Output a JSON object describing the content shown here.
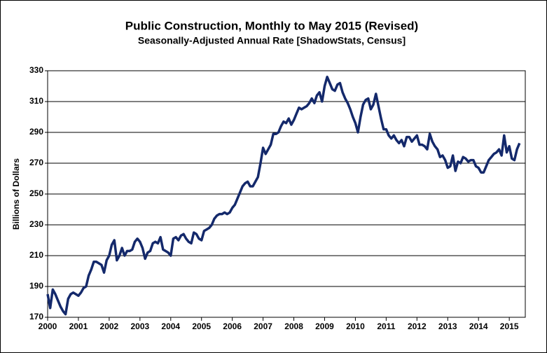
{
  "chart_data": {
    "type": "line",
    "title": "Public Construction, Monthly to May 2015 (Revised)",
    "subtitle": "Seasonally-Adjusted Annual Rate [ShadowStats, Census]",
    "y_label": "Billions  of Dollars",
    "color": "#14296b",
    "grid": true,
    "xlim": [
      2000,
      2015.52
    ],
    "xticks": [
      2000,
      2001,
      2002,
      2003,
      2004,
      2005,
      2006,
      2007,
      2008,
      2009,
      2010,
      2011,
      2012,
      2013,
      2014,
      2015
    ],
    "ylim": [
      170,
      330
    ],
    "yticks": [
      170,
      190,
      210,
      230,
      250,
      270,
      290,
      310,
      330
    ],
    "x": [
      2000,
      2000.083,
      2000.167,
      2000.25,
      2000.333,
      2000.417,
      2000.5,
      2000.583,
      2000.667,
      2000.75,
      2000.833,
      2000.917,
      2001,
      2001.083,
      2001.167,
      2001.25,
      2001.333,
      2001.417,
      2001.5,
      2001.583,
      2001.667,
      2001.75,
      2001.833,
      2001.917,
      2002,
      2002.083,
      2002.167,
      2002.25,
      2002.333,
      2002.417,
      2002.5,
      2002.583,
      2002.667,
      2002.75,
      2002.833,
      2002.917,
      2003,
      2003.083,
      2003.167,
      2003.25,
      2003.333,
      2003.417,
      2003.5,
      2003.583,
      2003.667,
      2003.75,
      2003.833,
      2003.917,
      2004,
      2004.083,
      2004.167,
      2004.25,
      2004.333,
      2004.417,
      2004.5,
      2004.583,
      2004.667,
      2004.75,
      2004.833,
      2004.917,
      2005,
      2005.083,
      2005.167,
      2005.25,
      2005.333,
      2005.417,
      2005.5,
      2005.583,
      2005.667,
      2005.75,
      2005.833,
      2005.917,
      2006,
      2006.083,
      2006.167,
      2006.25,
      2006.333,
      2006.417,
      2006.5,
      2006.583,
      2006.667,
      2006.75,
      2006.833,
      2006.917,
      2007,
      2007.083,
      2007.167,
      2007.25,
      2007.333,
      2007.417,
      2007.5,
      2007.583,
      2007.667,
      2007.75,
      2007.833,
      2007.917,
      2008,
      2008.083,
      2008.167,
      2008.25,
      2008.333,
      2008.417,
      2008.5,
      2008.583,
      2008.667,
      2008.75,
      2008.833,
      2008.917,
      2009,
      2009.083,
      2009.167,
      2009.25,
      2009.333,
      2009.417,
      2009.5,
      2009.583,
      2009.667,
      2009.75,
      2009.833,
      2009.917,
      2010,
      2010.083,
      2010.167,
      2010.25,
      2010.333,
      2010.417,
      2010.5,
      2010.583,
      2010.667,
      2010.75,
      2010.833,
      2010.917,
      2011,
      2011.083,
      2011.167,
      2011.25,
      2011.333,
      2011.417,
      2011.5,
      2011.583,
      2011.667,
      2011.75,
      2011.833,
      2011.917,
      2012,
      2012.083,
      2012.167,
      2012.25,
      2012.333,
      2012.417,
      2012.5,
      2012.583,
      2012.667,
      2012.75,
      2012.833,
      2012.917,
      2013,
      2013.083,
      2013.167,
      2013.25,
      2013.333,
      2013.417,
      2013.5,
      2013.583,
      2013.667,
      2013.75,
      2013.833,
      2013.917,
      2014,
      2014.083,
      2014.167,
      2014.25,
      2014.333,
      2014.417,
      2014.5,
      2014.583,
      2014.667,
      2014.75,
      2014.833,
      2014.917,
      2015,
      2015.083,
      2015.167,
      2015.25,
      2015.333
    ],
    "values": [
      185,
      176,
      188,
      185,
      181,
      177,
      174,
      172,
      182,
      185,
      186,
      185,
      184,
      186,
      189,
      190,
      197,
      201,
      206,
      206,
      205,
      204,
      199,
      207,
      210,
      217,
      220,
      207,
      210,
      215,
      210,
      213,
      213,
      214,
      219,
      221,
      219,
      215,
      208,
      212,
      213,
      218,
      219,
      218,
      222,
      214,
      213,
      212,
      210,
      221,
      222,
      220,
      223,
      224,
      221,
      219,
      218,
      225,
      224,
      221,
      220,
      226,
      227,
      228,
      230,
      234,
      236,
      237,
      237,
      238,
      237,
      238,
      241,
      243,
      247,
      251,
      255,
      257,
      258,
      255,
      255,
      258,
      261,
      270,
      280,
      276,
      279,
      282,
      289,
      289,
      290,
      294,
      297,
      296,
      299,
      295,
      298,
      302,
      306,
      305,
      306,
      307,
      309,
      312,
      309,
      314,
      316,
      310,
      320,
      326,
      322,
      318,
      317,
      321,
      322,
      316,
      312,
      309,
      305,
      300,
      296,
      290,
      300,
      308,
      311,
      312,
      305,
      308,
      315,
      307,
      299,
      292,
      292,
      288,
      286,
      288,
      285,
      283,
      285,
      281,
      287,
      287,
      284,
      286,
      288,
      282,
      282,
      281,
      279,
      289,
      284,
      281,
      279,
      274,
      275,
      272,
      267,
      268,
      275,
      265,
      271,
      270,
      274,
      273,
      271,
      272,
      272,
      268,
      267,
      264,
      264,
      268,
      272,
      274,
      276,
      277,
      279,
      275,
      288,
      277,
      281,
      273,
      272,
      279,
      283
    ]
  }
}
